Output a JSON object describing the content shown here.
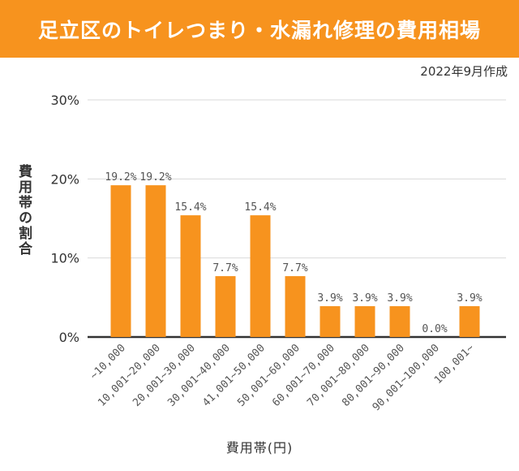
{
  "header": {
    "title": "足立区のトイレつまり・水漏れ修理の費用相場"
  },
  "meta": {
    "date": "2022年9月作成"
  },
  "colors": {
    "accent": "#F7931E",
    "bar": "#F7931E",
    "grid": "#d9d9d9",
    "axis": "#333333"
  },
  "chart_data": {
    "type": "bar",
    "title": "足立区のトイレつまり・水漏れ修理の費用相場",
    "xlabel": "費用帯(円)",
    "ylabel": "費用帯の割合",
    "ylim": [
      0,
      30
    ],
    "yticks": [
      0,
      10,
      20,
      30
    ],
    "ytick_labels": [
      "0%",
      "10%",
      "20%",
      "30%"
    ],
    "grid": true,
    "categories": [
      "~10,000",
      "10,001~20,000",
      "20,001~30,000",
      "30,001~40,000",
      "41,001~50,000",
      "50,001~60,000",
      "60,001~70,000",
      "70,001~80,000",
      "80,001~90,000",
      "90,001~100,000",
      "100,001~"
    ],
    "values": [
      19.2,
      19.2,
      15.4,
      7.7,
      15.4,
      7.7,
      3.9,
      3.9,
      3.9,
      0.0,
      3.9
    ],
    "data_labels": [
      "19.2%",
      "19.2%",
      "15.4%",
      "7.7%",
      "15.4%",
      "7.7%",
      "3.9%",
      "3.9%",
      "3.9%",
      "0.0%",
      "3.9%"
    ]
  }
}
